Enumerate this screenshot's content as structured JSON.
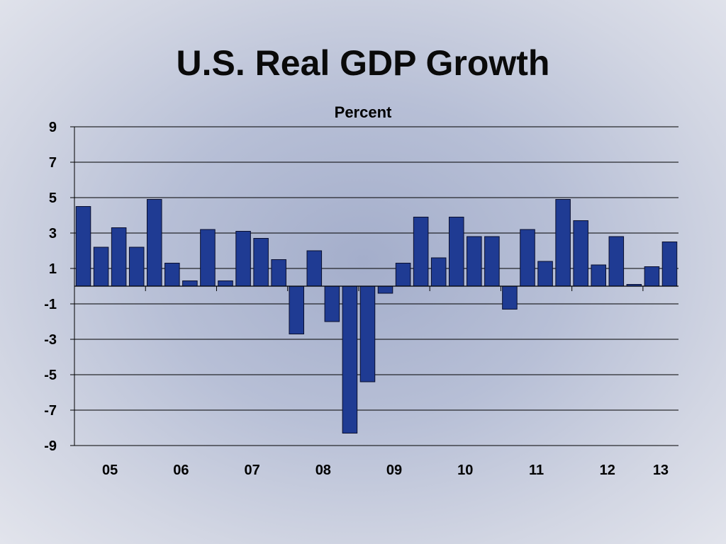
{
  "slide": {
    "title": "U.S. Real GDP Growth"
  },
  "chart_data": {
    "type": "bar",
    "title": "U.S. Real GDP Growth",
    "ylabel": "Percent",
    "xlabel": "",
    "ylim": [
      -9,
      9
    ],
    "yticks": [
      9,
      7,
      5,
      3,
      1,
      -1,
      -3,
      -5,
      -7,
      -9
    ],
    "grid": true,
    "bar_color": "#1f3b93",
    "x_tick_labels": [
      "05",
      "06",
      "07",
      "08",
      "09",
      "10",
      "11",
      "12",
      "13"
    ],
    "quarters_per_year": 4,
    "values": [
      4.5,
      2.2,
      3.3,
      2.2,
      4.9,
      1.3,
      0.3,
      3.2,
      0.3,
      3.1,
      2.7,
      1.5,
      -2.7,
      2.0,
      -2.0,
      -8.3,
      -5.4,
      -0.4,
      1.3,
      3.9,
      1.6,
      3.9,
      2.8,
      2.8,
      -1.3,
      3.2,
      1.4,
      4.9,
      3.7,
      1.2,
      2.8,
      0.1,
      1.1,
      2.5
    ]
  }
}
